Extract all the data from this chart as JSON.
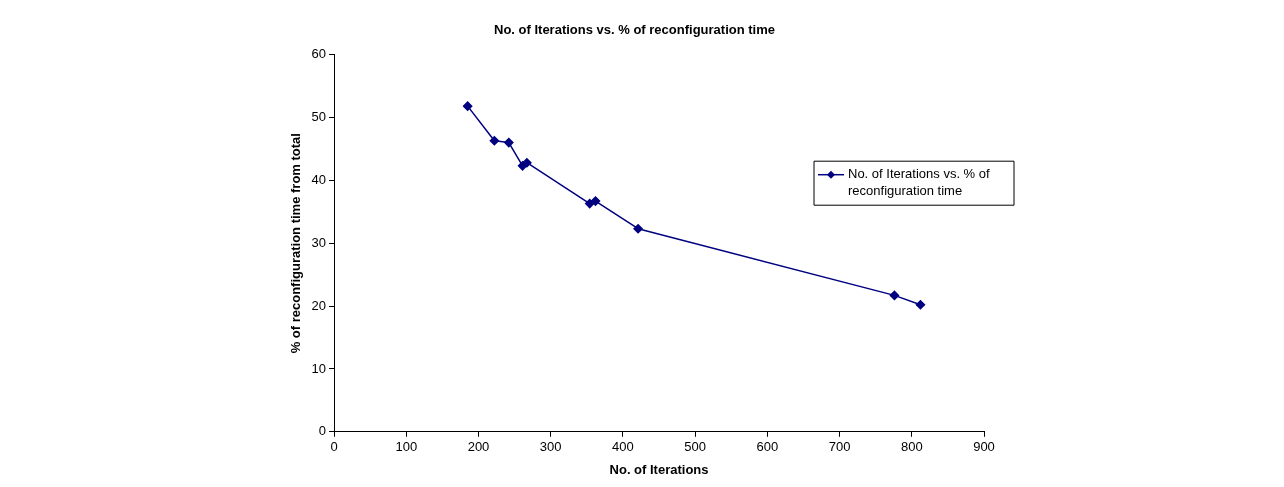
{
  "chart_data": {
    "type": "line",
    "title": "No. of Iterations vs. % of reconfiguration time",
    "xlabel": "No. of Iterations",
    "ylabel": "% of reconfiguration time from total",
    "x": [
      185,
      222,
      242,
      261,
      267,
      354,
      362,
      421,
      776,
      812
    ],
    "series": [
      {
        "name": "No. of Iterations vs. % of reconfiguration time",
        "color": "#000080",
        "values": [
          51.8,
          46.3,
          46,
          42.3,
          42.8,
          36.3,
          36.7,
          32.3,
          21.7,
          20.2
        ]
      }
    ],
    "xlim": [
      0,
      900
    ],
    "xticks": [
      0,
      100,
      200,
      300,
      400,
      500,
      600,
      700,
      800,
      900
    ],
    "ylim": [
      0,
      60
    ],
    "yticks": [
      0,
      10,
      20,
      30,
      40,
      50,
      60
    ],
    "grid": false,
    "legend": "right",
    "marker": "diamond",
    "line_style": "solid"
  }
}
